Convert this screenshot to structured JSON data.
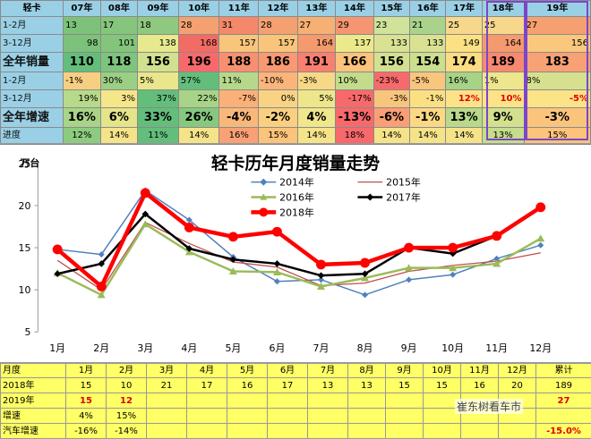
{
  "top_table": {
    "corner": "轻卡",
    "years": [
      "07年",
      "08年",
      "09年",
      "10年",
      "11年",
      "12年",
      "13年",
      "14年",
      "15年",
      "16年",
      "17年",
      "18年",
      "19年"
    ],
    "rows": [
      {
        "label": "1-2月",
        "big": false,
        "values": [
          "13",
          "17",
          "18",
          "28",
          "31",
          "28",
          "27",
          "29",
          "23",
          "21",
          "25",
          "25",
          "27"
        ],
        "colors": [
          "#7cc27a",
          "#85c67c",
          "#8ec97f",
          "#f5a070",
          "#f4886a",
          "#f5a070",
          "#f7b074",
          "#f59572",
          "#cfe39a",
          "#a9d38a",
          "#f6d78c",
          "#f6d78c",
          "#f5a070"
        ],
        "align": "l"
      },
      {
        "label": "3-12月",
        "big": false,
        "values": [
          "98",
          "101",
          "138",
          "168",
          "157",
          "157",
          "164",
          "137",
          "133",
          "133",
          "149",
          "164",
          "156"
        ],
        "colors": [
          "#7cc27a",
          "#84c57c",
          "#e6e98e",
          "#f26b65",
          "#f8c57b",
          "#f8c57b",
          "#f59a6e",
          "#ece98c",
          "#d8e292",
          "#d8e292",
          "#fbe183",
          "#f59a6e",
          "#f9c87d"
        ],
        "align": "r"
      },
      {
        "label": "全年销量",
        "big": true,
        "values": [
          "110",
          "118",
          "156",
          "196",
          "188",
          "186",
          "191",
          "166",
          "156",
          "154",
          "174",
          "189",
          "183"
        ],
        "colors": [
          "#63be7b",
          "#7dc57c",
          "#d2e18f",
          "#f8696b",
          "#f8906f",
          "#f99871",
          "#f97f6e",
          "#fbc37c",
          "#d3e18f",
          "#cbdf8d",
          "#fcdc82",
          "#f8896f",
          "#f8a174"
        ],
        "align": "c"
      },
      {
        "label": "1-2月",
        "big": false,
        "values": [
          "-1%",
          "30%",
          "5%",
          "57%",
          "11%",
          "-10%",
          "-3%",
          "10%",
          "-23%",
          "-5%",
          "16%",
          "1%",
          "8%"
        ],
        "colors": [
          "#f7cf82",
          "#9bcf84",
          "#e9e68c",
          "#63be7b",
          "#b6d88a",
          "#fbb57a",
          "#f7d886",
          "#c2dc8c",
          "#f8696b",
          "#f9c67e",
          "#a6d385",
          "#ede68c",
          "#d6e08f"
        ],
        "align": "l"
      },
      {
        "label": "3-12月",
        "big": false,
        "values": [
          "19%",
          "3%",
          "37%",
          "22%",
          "-7%",
          "0%",
          "5%",
          "-17%",
          "-3%",
          "-1%",
          "12%",
          "10%",
          "-5%"
        ],
        "colors": [
          "#b7d98a",
          "#f6e68a",
          "#63be7b",
          "#a7d486",
          "#fbb078",
          "#f9d383",
          "#eee68b",
          "#f8696b",
          "#f8c57d",
          "#fbe083",
          "#fce388",
          "#fce388",
          "#fce388"
        ],
        "align": "r",
        "red_from": 10
      },
      {
        "label": "全年增速",
        "big": true,
        "values": [
          "16%",
          "6%",
          "33%",
          "26%",
          "-4%",
          "-2%",
          "4%",
          "-13%",
          "-6%",
          "-1%",
          "13%",
          "9%",
          "-3%"
        ],
        "colors": [
          "#a8d487",
          "#e4e48a",
          "#63be7b",
          "#86c97e",
          "#f9b87a",
          "#fbcf80",
          "#f0e68b",
          "#f8696b",
          "#fa9e75",
          "#fbd883",
          "#b9d98a",
          "#d3e08d",
          "#fbc47d"
        ],
        "align": "c"
      },
      {
        "label": "进度",
        "big": false,
        "values": [
          "12%",
          "14%",
          "11%",
          "14%",
          "16%",
          "15%",
          "14%",
          "18%",
          "14%",
          "14%",
          "14%",
          "13%",
          "15%"
        ],
        "colors": [
          "#8ccb80",
          "#f5e38a",
          "#63be7b",
          "#f5e38a",
          "#f9a174",
          "#fbc37c",
          "#f5e38a",
          "#f8696b",
          "#f5e38a",
          "#f5e38a",
          "#f5e38a",
          "#c6dd8c",
          "#fbc37c"
        ],
        "align": "c"
      }
    ]
  },
  "chart_data": {
    "type": "line",
    "title": "轻卡历年月度销量走势",
    "ylabel": "万台",
    "ylim": [
      5,
      25
    ],
    "yticks": [
      5,
      10,
      15,
      20,
      25
    ],
    "grid": false,
    "legend_position": "top-center",
    "categories": [
      "1月",
      "2月",
      "3月",
      "4月",
      "5月",
      "6月",
      "7月",
      "8月",
      "9月",
      "10月",
      "11月",
      "12月"
    ],
    "series": [
      {
        "name": "2014年",
        "color": "#4f81bd",
        "width": 1.5,
        "marker": "diamond",
        "values": [
          14.8,
          14.2,
          21.8,
          18.3,
          13.9,
          11.0,
          11.2,
          9.4,
          11.2,
          11.8,
          13.7,
          15.3
        ]
      },
      {
        "name": "2015年",
        "color": "#c0504d",
        "width": 1.3,
        "marker": "none",
        "values": [
          13.5,
          10.0,
          18.0,
          15.5,
          13.3,
          12.7,
          10.5,
          10.8,
          12.2,
          12.9,
          13.4,
          14.4
        ]
      },
      {
        "name": "2016年",
        "color": "#9bbb59",
        "width": 2.5,
        "marker": "triangle",
        "values": [
          12.0,
          9.4,
          17.8,
          14.5,
          12.2,
          12.1,
          10.4,
          11.4,
          12.6,
          12.6,
          13.1,
          16.1
        ]
      },
      {
        "name": "2017年",
        "color": "#000000",
        "width": 2.5,
        "marker": "diamond",
        "values": [
          11.9,
          13.1,
          19.0,
          14.9,
          13.6,
          13.1,
          11.7,
          11.9,
          15.0,
          14.3,
          16.4,
          19.8
        ]
      },
      {
        "name": "2018年",
        "color": "#ff0000",
        "width": 4.5,
        "marker": "circle",
        "values": [
          14.8,
          10.4,
          21.5,
          17.4,
          16.3,
          16.9,
          13.0,
          13.2,
          15.0,
          15.0,
          16.4,
          19.8
        ]
      }
    ]
  },
  "bottom_table": {
    "header": [
      "月度",
      "1月",
      "2月",
      "3月",
      "4月",
      "5月",
      "6月",
      "7月",
      "8月",
      "9月",
      "10月",
      "11月",
      "12月",
      "累计"
    ],
    "rows": [
      {
        "label": "2018年",
        "values": [
          "15",
          "10",
          "21",
          "17",
          "16",
          "17",
          "13",
          "13",
          "15",
          "15",
          "16",
          "20",
          "189"
        ],
        "red": []
      },
      {
        "label": "2019年",
        "values": [
          "15",
          "12",
          "",
          "",
          "",
          "",
          "",
          "",
          "",
          "",
          "",
          "",
          "27"
        ],
        "red": [
          0,
          1,
          12
        ]
      },
      {
        "label": "增速",
        "values": [
          "4%",
          "15%",
          "",
          "",
          "",
          "",
          "",
          "",
          "",
          "",
          "",
          "",
          ""
        ],
        "red": []
      },
      {
        "label": "汽车增速",
        "values": [
          "-16%",
          "-14%",
          "",
          "",
          "",
          "",
          "",
          "",
          "",
          "",
          "",
          "",
          "-15.0%"
        ],
        "red": [
          12
        ]
      }
    ]
  },
  "watermark": "崔东树看车市"
}
